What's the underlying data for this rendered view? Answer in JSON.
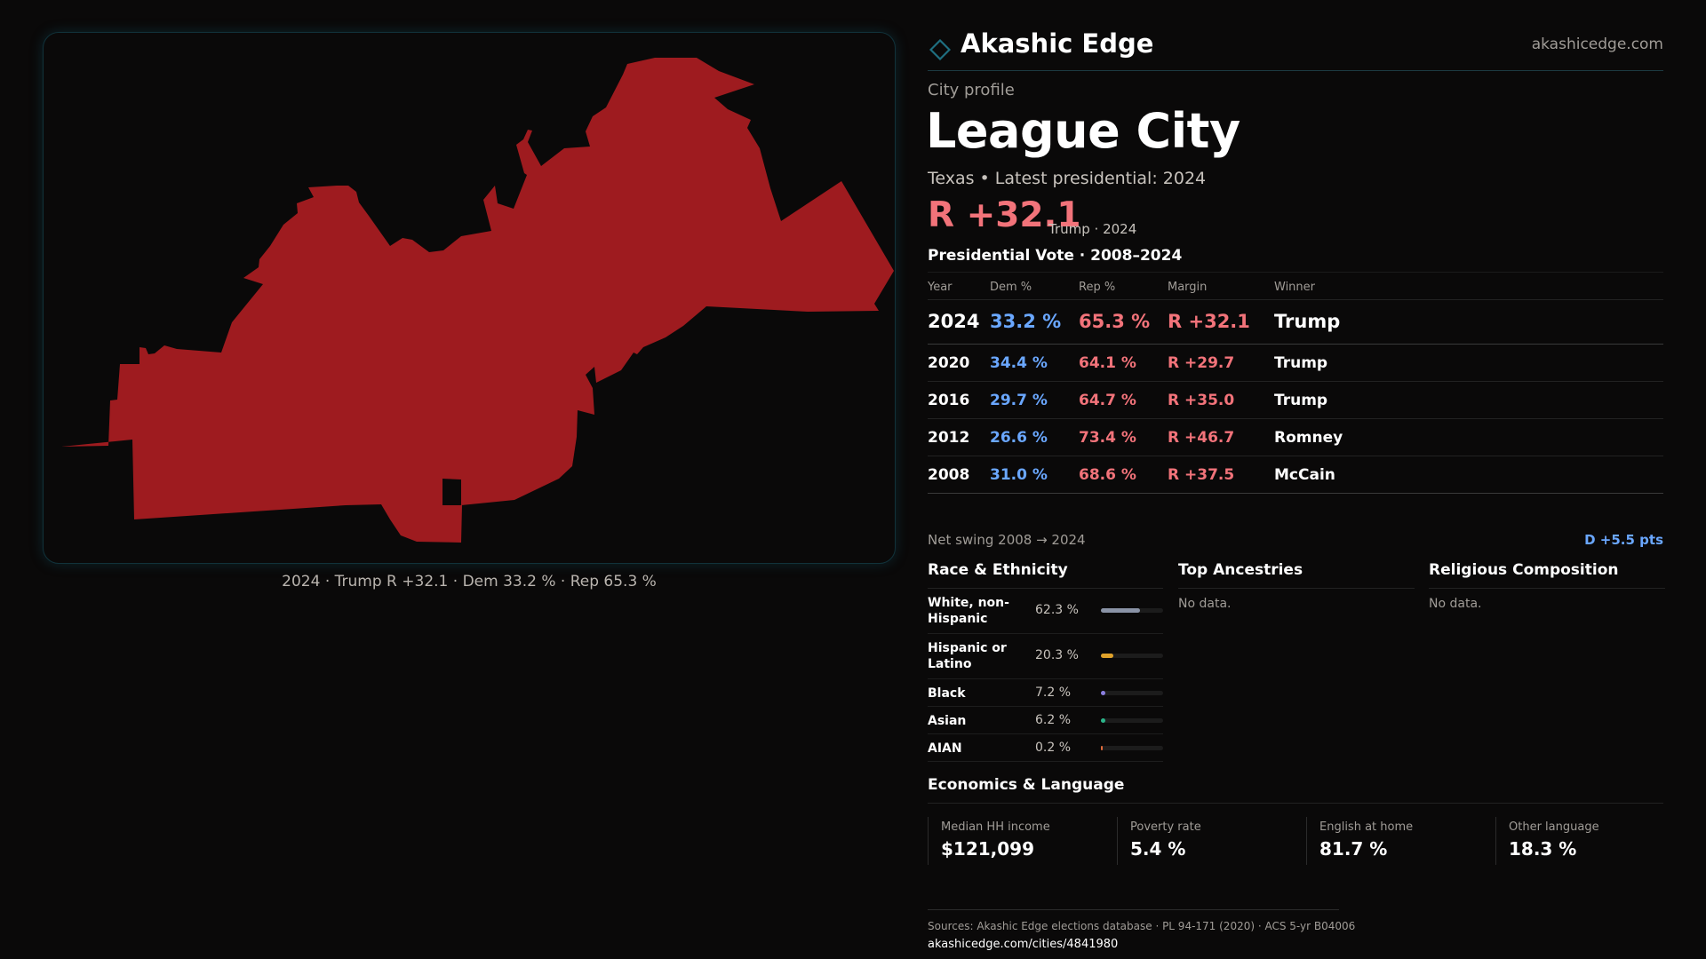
{
  "colors": {
    "background": "#0a0909",
    "accent_teal": "#1f6f80",
    "republican": "#f2737a",
    "republican_fill": "#9e1b1f",
    "democrat": "#6aa7ff",
    "muted_text": "#a09c97"
  },
  "brand": {
    "logo_icon": "diamond-outline-icon",
    "name": "Akashic Edge",
    "url": "akashicedge.com"
  },
  "map": {
    "caption": "2024 · Trump R +32.1 · Dem 33.2 % · Rep 65.3 %"
  },
  "profile": {
    "kicker": "City profile",
    "city": "League City",
    "subline": "Texas • Latest presidential: 2024",
    "margin": "R +32.1",
    "margin_detail": "Trump · 2024"
  },
  "votes": {
    "title": "Presidential Vote · 2008–2024",
    "headers": {
      "year": "Year",
      "dem": "Dem %",
      "rep": "Rep %",
      "margin": "Margin",
      "winner": "Winner"
    },
    "rows": [
      {
        "year": "2024",
        "dem": "33.2 %",
        "rep": "65.3 %",
        "margin": "R +32.1",
        "winner": "Trump"
      },
      {
        "year": "2020",
        "dem": "34.4 %",
        "rep": "64.1 %",
        "margin": "R +29.7",
        "winner": "Trump"
      },
      {
        "year": "2016",
        "dem": "29.7 %",
        "rep": "64.7 %",
        "margin": "R +35.0",
        "winner": "Trump"
      },
      {
        "year": "2012",
        "dem": "26.6 %",
        "rep": "73.4 %",
        "margin": "R +46.7",
        "winner": "Romney"
      },
      {
        "year": "2008",
        "dem": "31.0 %",
        "rep": "68.6 %",
        "margin": "R +37.5",
        "winner": "McCain"
      }
    ],
    "swing_label": "Net swing 2008 → 2024",
    "swing_value": "D +5.5 pts"
  },
  "race": {
    "title": "Race & Ethnicity",
    "items": [
      {
        "label": "White, non-Hispanic",
        "value": "62.3 %",
        "share": 0.623,
        "color": "#8a93a6"
      },
      {
        "label": "Hispanic or Latino",
        "value": "20.3 %",
        "share": 0.203,
        "color": "#e0a22a"
      },
      {
        "label": "Black",
        "value": "7.2 %",
        "share": 0.072,
        "color": "#8b7fe0"
      },
      {
        "label": "Asian",
        "value": "6.2 %",
        "share": 0.062,
        "color": "#2bb58a"
      },
      {
        "label": "AIAN",
        "value": "0.2 %",
        "share": 0.002,
        "color": "#e06a3a"
      }
    ]
  },
  "ancestries": {
    "title": "Top Ancestries",
    "empty": "No data."
  },
  "religion": {
    "title": "Religious Composition",
    "empty": "No data."
  },
  "economics": {
    "title": "Economics & Language",
    "cards": [
      {
        "label": "Median HH income",
        "value": "$121,099"
      },
      {
        "label": "Poverty rate",
        "value": "5.4 %"
      },
      {
        "label": "English at home",
        "value": "81.7 %"
      },
      {
        "label": "Other language",
        "value": "18.3 %"
      }
    ]
  },
  "sources": {
    "line": "Sources: Akashic Edge elections database · PL 94-171 (2020) · ACS 5-yr B04006",
    "url": "akashicedge.com/cities/4841980"
  }
}
